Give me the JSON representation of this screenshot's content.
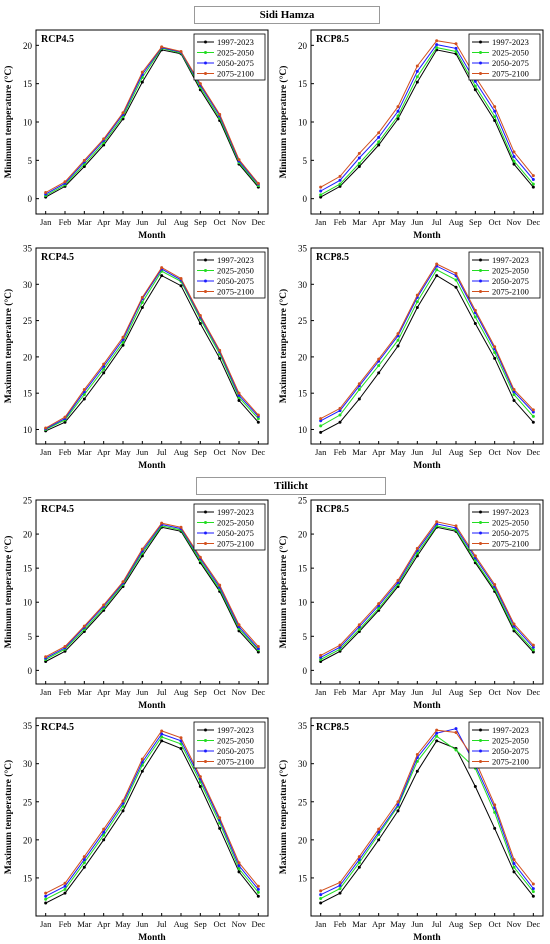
{
  "sections": [
    {
      "title": "Sidi Hamza"
    },
    {
      "title": "Tillicht"
    }
  ],
  "legend_colors": [
    "#000000",
    "#22dd22",
    "#1a1aff",
    "#d2501e"
  ],
  "chart_data": [
    {
      "type": "line",
      "title": "RCP4.5",
      "xlabel": "Month",
      "ylabel": "Minimum temperature (°C)",
      "categories": [
        "Jan",
        "Feb",
        "Mar",
        "Apr",
        "May",
        "Jun",
        "Jul",
        "Aug",
        "Sep",
        "Oct",
        "Nov",
        "Dec"
      ],
      "ylim": [
        -2,
        22
      ],
      "yticks": [
        0,
        5,
        10,
        15,
        20
      ],
      "legend": "top-right",
      "series": [
        {
          "name": "1997-2023",
          "values": [
            0.2,
            1.6,
            4.2,
            7.0,
            10.4,
            15.2,
            19.4,
            18.9,
            14.2,
            10.2,
            4.5,
            1.5
          ]
        },
        {
          "name": "2025-2050",
          "values": [
            0.4,
            1.8,
            4.5,
            7.3,
            10.7,
            15.8,
            19.6,
            19.0,
            14.5,
            10.5,
            4.7,
            1.7
          ]
        },
        {
          "name": "2050-2075",
          "values": [
            0.6,
            2.0,
            4.8,
            7.6,
            11.0,
            16.2,
            19.7,
            19.1,
            14.8,
            10.8,
            4.9,
            1.9
          ]
        },
        {
          "name": "2075-2100",
          "values": [
            0.8,
            2.2,
            5.0,
            7.8,
            11.2,
            16.5,
            19.8,
            19.2,
            15.0,
            11.0,
            5.1,
            2.0
          ]
        }
      ]
    },
    {
      "type": "line",
      "title": "RCP8.5",
      "xlabel": "Month",
      "ylabel": "Minimum temperature (°C)",
      "categories": [
        "Jan",
        "Feb",
        "Mar",
        "Apr",
        "May",
        "Jun",
        "Jul",
        "Aug",
        "Sep",
        "Oct",
        "Nov",
        "Dec"
      ],
      "ylim": [
        -2,
        22
      ],
      "yticks": [
        0,
        5,
        10,
        15,
        20
      ],
      "legend": "top-right",
      "series": [
        {
          "name": "1997-2023",
          "values": [
            0.2,
            1.6,
            4.2,
            7.0,
            10.4,
            15.2,
            19.4,
            18.9,
            14.2,
            10.2,
            4.5,
            1.5
          ]
        },
        {
          "name": "2025-2050",
          "values": [
            0.5,
            1.9,
            4.6,
            7.4,
            10.8,
            15.9,
            19.7,
            19.2,
            14.7,
            10.7,
            4.9,
            1.9
          ]
        },
        {
          "name": "2050-2075",
          "values": [
            1.0,
            2.4,
            5.3,
            8.0,
            11.4,
            16.6,
            20.1,
            19.6,
            15.3,
            11.4,
            5.5,
            2.5
          ]
        },
        {
          "name": "2075-2100",
          "values": [
            1.5,
            2.9,
            5.9,
            8.6,
            12.0,
            17.3,
            20.6,
            20.2,
            15.9,
            12.0,
            6.1,
            3.0
          ]
        }
      ]
    },
    {
      "type": "line",
      "title": "RCP4.5",
      "xlabel": "Month",
      "ylabel": "Maximum temperature (°C)",
      "categories": [
        "Jan",
        "Feb",
        "Mar",
        "Apr",
        "May",
        "Jun",
        "Jul",
        "Aug",
        "Sep",
        "Oct",
        "Nov",
        "Dec"
      ],
      "ylim": [
        8,
        35
      ],
      "yticks": [
        10,
        15,
        20,
        25,
        30,
        35
      ],
      "legend": "top-right",
      "series": [
        {
          "name": "1997-2023",
          "values": [
            9.8,
            11.0,
            14.2,
            17.8,
            21.6,
            26.8,
            31.2,
            29.8,
            24.6,
            19.8,
            14.0,
            11.0
          ]
        },
        {
          "name": "2025-2050",
          "values": [
            10.0,
            11.3,
            14.8,
            18.3,
            22.0,
            27.5,
            31.8,
            30.4,
            25.2,
            20.4,
            14.4,
            11.5
          ]
        },
        {
          "name": "2050-2075",
          "values": [
            10.1,
            11.5,
            15.2,
            18.7,
            22.4,
            28.0,
            32.1,
            30.6,
            25.5,
            20.7,
            14.7,
            11.8
          ]
        },
        {
          "name": "2075-2100",
          "values": [
            10.2,
            11.7,
            15.5,
            19.0,
            22.7,
            28.2,
            32.3,
            30.8,
            25.7,
            20.9,
            15.0,
            12.0
          ]
        }
      ]
    },
    {
      "type": "line",
      "title": "RCP8.5",
      "xlabel": "Month",
      "ylabel": "Maximum temperature (°C)",
      "categories": [
        "Jan",
        "Feb",
        "Mar",
        "Apr",
        "May",
        "Jun",
        "Jul",
        "Aug",
        "Sep",
        "Oct",
        "Nov",
        "Dec"
      ],
      "ylim": [
        8,
        35
      ],
      "yticks": [
        10,
        15,
        20,
        25,
        30,
        35
      ],
      "legend": "top-right",
      "series": [
        {
          "name": "1997-2023",
          "values": [
            9.6,
            11.0,
            14.2,
            17.8,
            21.5,
            26.8,
            31.2,
            29.6,
            24.6,
            19.8,
            14.0,
            11.0
          ]
        },
        {
          "name": "2025-2050",
          "values": [
            10.5,
            12.0,
            15.5,
            18.8,
            22.3,
            27.6,
            32.0,
            30.6,
            25.5,
            20.6,
            14.8,
            11.8
          ]
        },
        {
          "name": "2050-2075",
          "values": [
            11.2,
            12.6,
            16.0,
            19.4,
            22.9,
            28.2,
            32.5,
            31.2,
            26.1,
            21.1,
            15.2,
            12.4
          ]
        },
        {
          "name": "2075-2100",
          "values": [
            11.5,
            12.9,
            16.3,
            19.7,
            23.2,
            28.5,
            32.8,
            31.5,
            26.4,
            21.4,
            15.5,
            12.7
          ]
        }
      ]
    },
    {
      "type": "line",
      "title": "RCP4.5",
      "xlabel": "Month",
      "ylabel": "Minimum temperature (°C)",
      "categories": [
        "Jan",
        "Feb",
        "Mar",
        "Apr",
        "May",
        "Jun",
        "Jul",
        "Aug",
        "Sep",
        "Oct",
        "Nov",
        "Dec"
      ],
      "ylim": [
        -2,
        25
      ],
      "yticks": [
        0,
        5,
        10,
        15,
        20,
        25
      ],
      "legend": "top-right",
      "series": [
        {
          "name": "1997-2023",
          "values": [
            1.3,
            2.8,
            5.7,
            8.8,
            12.3,
            16.8,
            21.0,
            20.4,
            15.8,
            11.6,
            5.8,
            2.7
          ]
        },
        {
          "name": "2025-2050",
          "values": [
            1.6,
            3.1,
            6.0,
            9.1,
            12.6,
            17.2,
            21.2,
            20.6,
            16.1,
            11.9,
            6.1,
            3.0
          ]
        },
        {
          "name": "2050-2075",
          "values": [
            1.8,
            3.3,
            6.3,
            9.4,
            12.8,
            17.5,
            21.4,
            20.8,
            16.4,
            12.2,
            6.4,
            3.2
          ]
        },
        {
          "name": "2075-2100",
          "values": [
            2.0,
            3.5,
            6.5,
            9.6,
            13.0,
            17.8,
            21.6,
            21.0,
            16.6,
            12.5,
            6.7,
            3.5
          ]
        }
      ]
    },
    {
      "type": "line",
      "title": "RCP8.5",
      "xlabel": "Month",
      "ylabel": "Minimum temperature (°C)",
      "categories": [
        "Jan",
        "Feb",
        "Mar",
        "Apr",
        "May",
        "Jun",
        "Jul",
        "Aug",
        "Sep",
        "Oct",
        "Nov",
        "Dec"
      ],
      "ylim": [
        -2,
        25
      ],
      "yticks": [
        0,
        5,
        10,
        15,
        20,
        25
      ],
      "legend": "top-right",
      "series": [
        {
          "name": "1997-2023",
          "values": [
            1.3,
            2.8,
            5.7,
            8.8,
            12.3,
            16.8,
            21.0,
            20.4,
            15.8,
            11.6,
            5.8,
            2.7
          ]
        },
        {
          "name": "2025-2050",
          "values": [
            1.6,
            3.1,
            6.0,
            9.1,
            12.6,
            17.2,
            21.2,
            20.6,
            16.1,
            11.9,
            6.1,
            3.0
          ]
        },
        {
          "name": "2050-2075",
          "values": [
            1.9,
            3.4,
            6.4,
            9.5,
            12.9,
            17.6,
            21.5,
            20.9,
            16.5,
            12.3,
            6.5,
            3.4
          ]
        },
        {
          "name": "2075-2100",
          "values": [
            2.2,
            3.7,
            6.7,
            9.8,
            13.2,
            17.9,
            21.8,
            21.2,
            16.8,
            12.6,
            6.8,
            3.7
          ]
        }
      ]
    },
    {
      "type": "line",
      "title": "RCP4.5",
      "xlabel": "Month",
      "ylabel": "Maximum temperature (°C)",
      "categories": [
        "Jan",
        "Feb",
        "Mar",
        "Apr",
        "May",
        "Jun",
        "Jul",
        "Aug",
        "Sep",
        "Oct",
        "Nov",
        "Dec"
      ],
      "ylim": [
        10,
        36
      ],
      "yticks": [
        15,
        20,
        25,
        30,
        35
      ],
      "legend": "top-right",
      "series": [
        {
          "name": "1997-2023",
          "values": [
            11.7,
            13.0,
            16.4,
            20.0,
            23.8,
            29.0,
            33.0,
            32.0,
            27.0,
            21.5,
            15.8,
            12.6
          ]
        },
        {
          "name": "2025-2050",
          "values": [
            12.2,
            13.5,
            17.0,
            20.6,
            24.4,
            29.8,
            33.5,
            32.6,
            27.6,
            22.2,
            16.2,
            13.1
          ]
        },
        {
          "name": "2050-2075",
          "values": [
            12.6,
            13.9,
            17.4,
            21.0,
            24.8,
            30.2,
            33.9,
            33.0,
            28.0,
            22.6,
            16.6,
            13.5
          ]
        },
        {
          "name": "2075-2100",
          "values": [
            13.0,
            14.3,
            17.8,
            21.4,
            25.1,
            30.6,
            34.3,
            33.4,
            28.3,
            22.9,
            17.0,
            13.9
          ]
        }
      ]
    },
    {
      "type": "line",
      "title": "RCP8.5",
      "xlabel": "Month",
      "ylabel": "Maximum temperature (°C)",
      "categories": [
        "Jan",
        "Feb",
        "Mar",
        "Apr",
        "May",
        "Jun",
        "Jul",
        "Aug",
        "Sep",
        "Oct",
        "Nov",
        "Dec"
      ],
      "ylim": [
        10,
        36
      ],
      "yticks": [
        15,
        20,
        25,
        30,
        35
      ],
      "legend": "top-right",
      "series": [
        {
          "name": "1997-2023",
          "values": [
            11.7,
            13.0,
            16.4,
            20.0,
            23.8,
            29.0,
            33.0,
            32.0,
            27.0,
            21.5,
            15.8,
            12.6
          ]
        },
        {
          "name": "2025-2050",
          "values": [
            12.3,
            13.6,
            17.0,
            20.7,
            24.4,
            30.3,
            33.6,
            31.8,
            29.4,
            23.6,
            16.4,
            13.2
          ]
        },
        {
          "name": "2050-2075",
          "values": [
            12.8,
            14.0,
            17.4,
            21.0,
            24.6,
            30.8,
            34.0,
            34.6,
            29.8,
            24.2,
            16.9,
            13.6
          ]
        },
        {
          "name": "2075-2100",
          "values": [
            13.3,
            14.4,
            17.8,
            21.4,
            25.0,
            31.2,
            34.4,
            34.1,
            30.4,
            24.6,
            17.4,
            14.2
          ]
        }
      ]
    }
  ]
}
